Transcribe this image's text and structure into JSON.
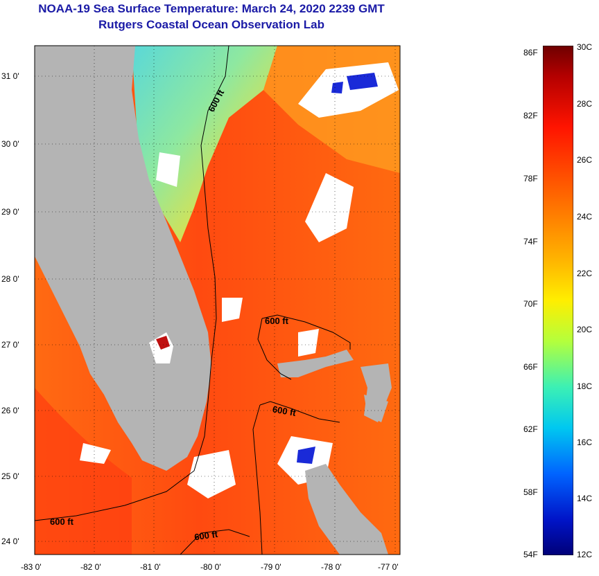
{
  "title": {
    "line1": "NOAA-19 Sea Surface Temperature:  March 24, 2020 2239 GMT",
    "line2": "Rutgers Coastal Ocean Observation Lab"
  },
  "map": {
    "lat_ticks": [
      "31 0'",
      "30 0'",
      "29 0'",
      "28 0'",
      "27 0'",
      "26 0'",
      "25 0'",
      "24 0'"
    ],
    "lon_ticks": [
      "-83 0'",
      "-82 0'",
      "-81 0'",
      "-80 0'",
      "-79 0'",
      "-78 0'",
      "-77 0'"
    ],
    "contour_labels": [
      "600 ft",
      "600 ft",
      "600 ft",
      "600 ft",
      "600 ft"
    ]
  },
  "colorbar": {
    "fahrenheit": [
      "86F",
      "82F",
      "78F",
      "74F",
      "70F",
      "66F",
      "62F",
      "58F",
      "54F"
    ],
    "celsius": [
      "30C",
      "28C",
      "26C",
      "24C",
      "22C",
      "20C",
      "18C",
      "16C",
      "14C",
      "12C"
    ]
  },
  "colors": {
    "land": "#b4b4b4",
    "warm": "#ff5a14",
    "cool": "#64dcc8",
    "cloud": "#ffffff",
    "title": "#1a1aa6"
  }
}
